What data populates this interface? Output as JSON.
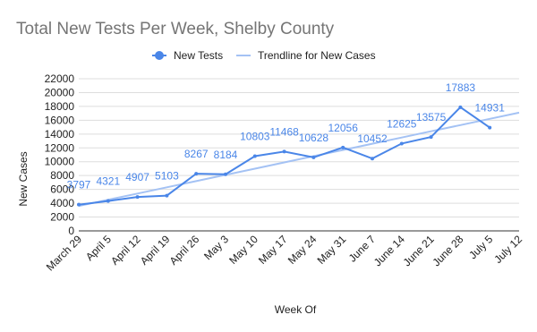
{
  "chart_data": {
    "type": "line",
    "title": "Total New Tests Per Week, Shelby County",
    "x_label": "Week Of",
    "y_label": "New Cases",
    "categories": [
      "March 29",
      "April 5",
      "April 12",
      "April 19",
      "April 26",
      "May 3",
      "May 10",
      "May 17",
      "May 24",
      "May 31",
      "June 7",
      "June 14",
      "June 21",
      "June 28",
      "July 5",
      "July 12"
    ],
    "series": [
      {
        "name": "New Tests",
        "color": "#4a86e8",
        "values": [
          3797,
          4321,
          4907,
          5103,
          8267,
          8184,
          10803,
          11468,
          10628,
          12056,
          10452,
          12625,
          13575,
          17883,
          14931,
          null
        ]
      },
      {
        "name": "Trendline for New Cases",
        "color": "#a4c2f4",
        "values": [
          3600,
          4500,
          5400,
          6300,
          7200,
          8100,
          9000,
          9900,
          10800,
          11700,
          12600,
          13500,
          14400,
          15300,
          16200,
          17100
        ]
      }
    ],
    "ylim": [
      0,
      22000
    ],
    "yticks": [
      0,
      2000,
      4000,
      6000,
      8000,
      10000,
      12000,
      14000,
      16000,
      18000,
      20000,
      22000
    ],
    "grid": true,
    "legend": "top"
  }
}
